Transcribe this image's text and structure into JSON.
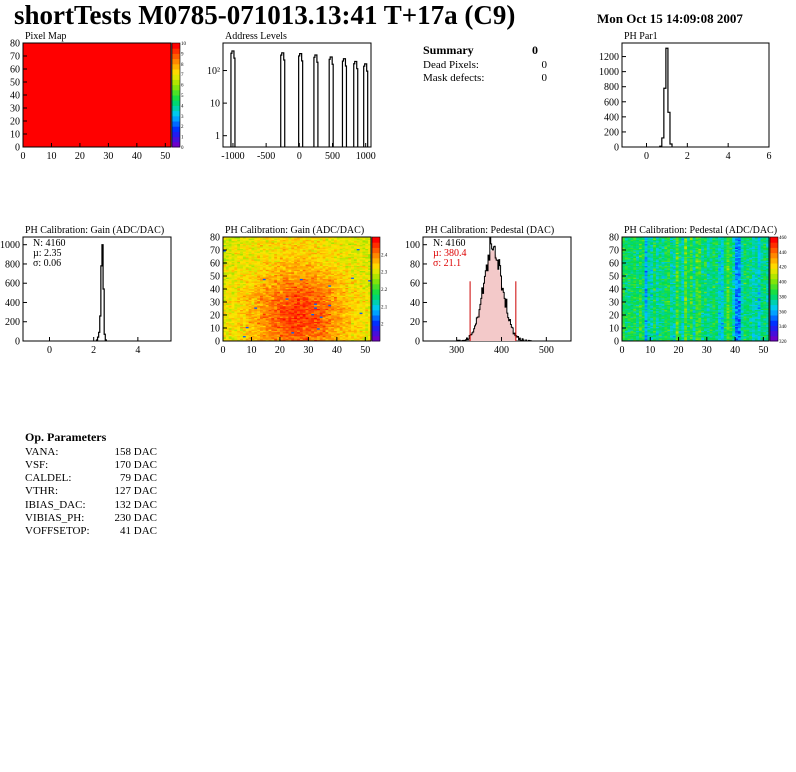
{
  "header": {
    "title": "shortTests M0785-071013.13:41 T+17a (C9)",
    "date": "Mon Oct 15 14:09:08 2007"
  },
  "summary": {
    "title": "Summary",
    "value": "0",
    "rows": [
      {
        "label": "Dead Pixels:",
        "value": "0"
      },
      {
        "label": "Mask defects:",
        "value": "0"
      }
    ]
  },
  "op_parameters": {
    "title": "Op. Parameters",
    "rows": [
      {
        "label": "VANA:",
        "value": "158 DAC"
      },
      {
        "label": "VSF:",
        "value": "170 DAC"
      },
      {
        "label": "CALDEL:",
        "value": "79 DAC"
      },
      {
        "label": "VTHR:",
        "value": "127 DAC"
      },
      {
        "label": "IBIAS_DAC:",
        "value": "132 DAC"
      },
      {
        "label": "VIBIAS_PH:",
        "value": "230 DAC"
      },
      {
        "label": "VOFFSETOP:",
        "value": "41 DAC"
      }
    ]
  },
  "colors": {
    "pixel_map_fill": "#ff0000",
    "fit_line": "#cc0000",
    "stats_red": "#dd0000"
  },
  "chart_data": [
    {
      "id": "pixel-map",
      "type": "heatmap",
      "title": "Pixel Map",
      "x_ticks": [
        "0",
        "10",
        "20",
        "30",
        "40",
        "50"
      ],
      "y_ticks": [
        "0",
        "10",
        "20",
        "30",
        "40",
        "50",
        "60",
        "70",
        "80"
      ],
      "xlim": [
        0,
        52
      ],
      "ylim": [
        0,
        80
      ],
      "uniform_value": 10,
      "palette_ticks": [
        "0",
        "1",
        "2",
        "3",
        "4",
        "5",
        "6",
        "7",
        "8",
        "9",
        "10"
      ]
    },
    {
      "id": "address-levels",
      "type": "bar",
      "title": "Address Levels",
      "log_y": true,
      "x_ticks": [
        "-1000",
        "-500",
        "0",
        "500",
        "1000"
      ],
      "y_ticks": [
        "1",
        "10",
        "10²"
      ],
      "xlim": [
        -1150,
        1080
      ],
      "ylim": [
        0.45,
        700
      ],
      "peaks": [
        {
          "x": -1000,
          "y": 400
        },
        {
          "x": -250,
          "y": 350
        },
        {
          "x": 20,
          "y": 330
        },
        {
          "x": 250,
          "y": 300
        },
        {
          "x": 480,
          "y": 260
        },
        {
          "x": 680,
          "y": 230
        },
        {
          "x": 850,
          "y": 190
        },
        {
          "x": 1000,
          "y": 160
        }
      ]
    },
    {
      "id": "ph-par1",
      "type": "bar",
      "title": "PH Par1",
      "x_ticks": [
        "0",
        "2",
        "4",
        "6"
      ],
      "y_ticks": [
        "0",
        "200",
        "400",
        "600",
        "800",
        "1000",
        "1200"
      ],
      "xlim": [
        -1.2,
        6
      ],
      "ylim": [
        0,
        1380
      ],
      "bins": [
        {
          "x": 0.7,
          "y": 10
        },
        {
          "x": 0.8,
          "y": 120
        },
        {
          "x": 0.9,
          "y": 780
        },
        {
          "x": 1.0,
          "y": 1310
        },
        {
          "x": 1.1,
          "y": 460
        },
        {
          "x": 1.2,
          "y": 40
        }
      ]
    },
    {
      "id": "gain-hist",
      "type": "bar",
      "title": "PH Calibration: Gain (ADC/DAC)",
      "stats": [
        "N: 4160",
        "µ: 2.35",
        "σ: 0.06"
      ],
      "x_ticks": [
        "0",
        "2",
        "4"
      ],
      "y_ticks": [
        "0",
        "200",
        "400",
        "600",
        "800",
        "1000"
      ],
      "xlim": [
        -1.2,
        5.5
      ],
      "ylim": [
        0,
        1080
      ],
      "bins": [
        {
          "x": 2.15,
          "y": 10
        },
        {
          "x": 2.2,
          "y": 40
        },
        {
          "x": 2.25,
          "y": 90
        },
        {
          "x": 2.3,
          "y": 260
        },
        {
          "x": 2.35,
          "y": 780
        },
        {
          "x": 2.4,
          "y": 1000
        },
        {
          "x": 2.45,
          "y": 540
        },
        {
          "x": 2.5,
          "y": 70
        },
        {
          "x": 2.55,
          "y": 10
        }
      ]
    },
    {
      "id": "gain-map",
      "type": "heatmap",
      "title": "PH Calibration: Gain (ADC/DAC)",
      "x_ticks": [
        "0",
        "10",
        "20",
        "30",
        "40",
        "50"
      ],
      "y_ticks": [
        "0",
        "10",
        "20",
        "30",
        "40",
        "50",
        "60",
        "70",
        "80"
      ],
      "xlim": [
        0,
        52
      ],
      "ylim": [
        0,
        80
      ],
      "z_range": [
        1.9,
        2.5
      ],
      "palette_ticks": [
        "2",
        "2.1",
        "2.2",
        "2.3",
        "2.4"
      ]
    },
    {
      "id": "pedestal-hist",
      "type": "bar",
      "title": "PH Calibration: Pedestal (DAC)",
      "stats": [
        "N: 4160",
        "µ: 380.4",
        "σ: 21.1"
      ],
      "x_ticks": [
        "300",
        "400",
        "500"
      ],
      "y_ticks": [
        "0",
        "20",
        "40",
        "60",
        "80",
        "100"
      ],
      "xlim": [
        225,
        555
      ],
      "ylim": [
        0,
        108
      ],
      "mean": 380.4,
      "sigma": 21.1,
      "cut_lines": [
        {
          "x": 330,
          "y": 62
        },
        {
          "x": 432,
          "y": 62
        }
      ],
      "peak": 95
    },
    {
      "id": "pedestal-map",
      "type": "heatmap",
      "title": "PH Calibration: Pedestal (ADC/DAC)",
      "x_ticks": [
        "0",
        "10",
        "20",
        "30",
        "40",
        "50"
      ],
      "y_ticks": [
        "0",
        "10",
        "20",
        "30",
        "40",
        "50",
        "60",
        "70",
        "80"
      ],
      "xlim": [
        0,
        52
      ],
      "ylim": [
        0,
        80
      ],
      "z_range": [
        320,
        460
      ],
      "palette_ticks": [
        "320",
        "340",
        "360",
        "380",
        "400",
        "420",
        "440",
        "460"
      ]
    }
  ]
}
